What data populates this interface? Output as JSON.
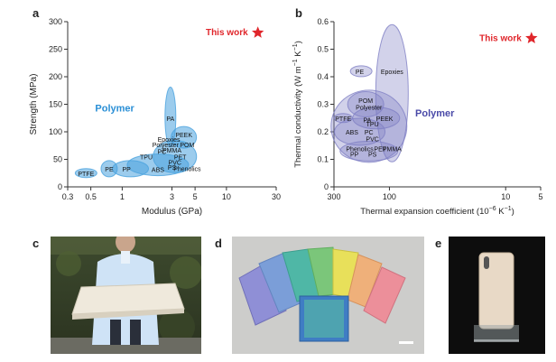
{
  "panels": {
    "a": "a",
    "b": "b",
    "c": "c",
    "d": "d",
    "e": "e"
  },
  "chart_data": [
    {
      "type": "scatter",
      "panel": "a",
      "xlabel": "Modulus (GPa)",
      "ylabel": "Strength (MPa)",
      "xscale": "log",
      "xlim": [
        0.3,
        30
      ],
      "ylim": [
        0,
        300
      ],
      "xticks": [
        "0.3",
        "0.5",
        "1",
        "3",
        "5",
        "10",
        "30"
      ],
      "yticks": [
        "0",
        "50",
        "100",
        "150",
        "200",
        "250",
        "300"
      ],
      "group_label": "Polymer",
      "highlight": {
        "label": "This work",
        "x": 20,
        "y": 280,
        "color": "#e0262b"
      },
      "series_color": "#4aa3df",
      "materials": [
        {
          "name": "PTFE",
          "x": 0.45,
          "y": 25
        },
        {
          "name": "PE",
          "x": 0.75,
          "y": 33
        },
        {
          "name": "PP",
          "x": 1.1,
          "y": 33
        },
        {
          "name": "ABS",
          "x": 2.2,
          "y": 32
        },
        {
          "name": "PS",
          "x": 3.0,
          "y": 36
        },
        {
          "name": "Phenolics",
          "x": 4.2,
          "y": 34
        },
        {
          "name": "TPU",
          "x": 1.7,
          "y": 55
        },
        {
          "name": "PC",
          "x": 2.4,
          "y": 65
        },
        {
          "name": "PMMA",
          "x": 3.0,
          "y": 67
        },
        {
          "name": "PVC",
          "x": 3.2,
          "y": 45
        },
        {
          "name": "PET",
          "x": 3.6,
          "y": 55
        },
        {
          "name": "POM",
          "x": 4.2,
          "y": 77
        },
        {
          "name": "Polyester",
          "x": 2.6,
          "y": 77
        },
        {
          "name": "Epoxies",
          "x": 2.8,
          "y": 87
        },
        {
          "name": "PEEK",
          "x": 3.9,
          "y": 95
        },
        {
          "name": "PA",
          "x": 2.9,
          "y": 125
        }
      ]
    },
    {
      "type": "scatter",
      "panel": "b",
      "xlabel": "Thermal expansion coefficient (10",
      "xlabel_sup": "−6",
      "xlabel_end": " K",
      "xlabel_sup2": "−1",
      "xlabel_close": ")",
      "ylabel": "Thermal conductivity (W m",
      "ylabel_sup": "−1",
      "ylabel_mid": " K",
      "ylabel_sup2": "−1",
      "ylabel_close": ")",
      "xscale": "log-reversed",
      "xlim": [
        300,
        5
      ],
      "ylim": [
        0,
        0.6
      ],
      "xticks": [
        "300",
        "100",
        "10",
        "5"
      ],
      "yticks": [
        "0",
        "0.1",
        "0.2",
        "0.3",
        "0.4",
        "0.5",
        "0.6"
      ],
      "group_label": "Polymer",
      "highlight": {
        "label": "This work",
        "x": 6,
        "y": 0.54,
        "color": "#e0262b"
      },
      "series_color": "#7f7fc4",
      "materials": [
        {
          "name": "PE",
          "x": 180,
          "y": 0.42
        },
        {
          "name": "Epoxies",
          "x": 95,
          "y": 0.42
        },
        {
          "name": "POM",
          "x": 160,
          "y": 0.315
        },
        {
          "name": "Polyester",
          "x": 150,
          "y": 0.29
        },
        {
          "name": "PTFE",
          "x": 250,
          "y": 0.25
        },
        {
          "name": "PA",
          "x": 155,
          "y": 0.245
        },
        {
          "name": "PEEK",
          "x": 110,
          "y": 0.25
        },
        {
          "name": "TPU",
          "x": 140,
          "y": 0.23
        },
        {
          "name": "ABS",
          "x": 210,
          "y": 0.2
        },
        {
          "name": "PC",
          "x": 150,
          "y": 0.2
        },
        {
          "name": "PVC",
          "x": 140,
          "y": 0.175
        },
        {
          "name": "Phenolics",
          "x": 180,
          "y": 0.14
        },
        {
          "name": "PET",
          "x": 120,
          "y": 0.14
        },
        {
          "name": "PMMA",
          "x": 95,
          "y": 0.14
        },
        {
          "name": "PP",
          "x": 200,
          "y": 0.12
        },
        {
          "name": "PS",
          "x": 140,
          "y": 0.12
        }
      ]
    }
  ],
  "photos": {
    "c": "Person in lab coat holding a large white board",
    "d": "Colored sample sheets fanned out",
    "e": "Phone-sized back panel on a stand"
  },
  "colors": {
    "highlight": "#e0262b",
    "polymer_a": "#2a8fd6",
    "polymer_b": "#4a4aa8"
  }
}
